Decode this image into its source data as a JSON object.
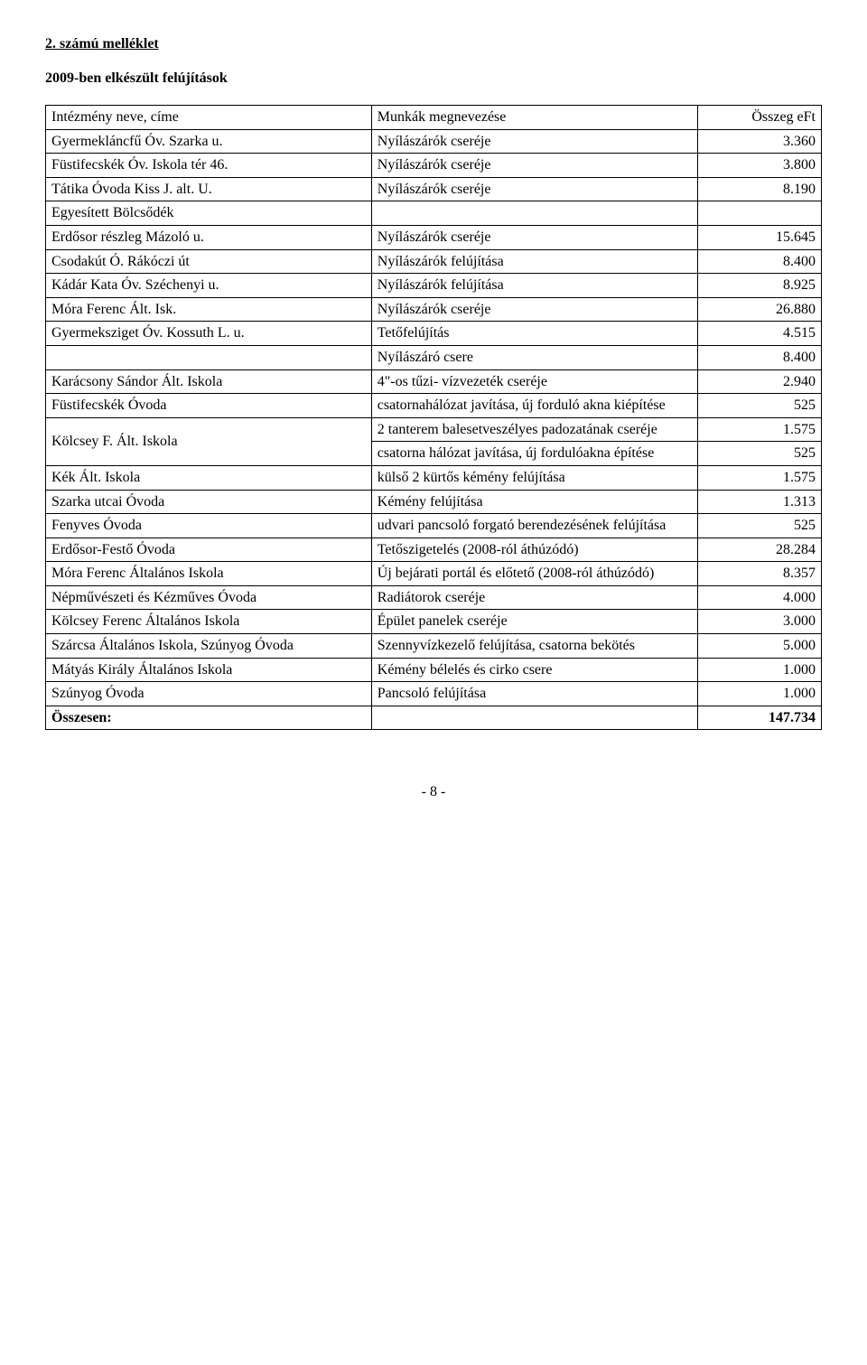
{
  "heading1": "2. számú melléklet",
  "heading2": "2009-ben elkészült felújítások",
  "table": {
    "col_widths": [
      "42%",
      "42%",
      "16%"
    ],
    "rows": [
      {
        "c1": "Intézmény neve, címe",
        "c2": "Munkák megnevezése",
        "c3": "Összeg eFt"
      },
      {
        "c1": "Gyermekláncfű Óv. Szarka u.",
        "c2": "Nyílászárók cseréje",
        "c3": "3.360"
      },
      {
        "c1": "Füstifecskék Óv. Iskola tér 46.",
        "c2": "Nyílászárók cseréje",
        "c3": "3.800"
      },
      {
        "c1": "Tátika Óvoda Kiss J. alt. U.",
        "c2": "Nyílászárók cseréje",
        "c3": "8.190"
      },
      {
        "c1": "Egyesített Bölcsődék",
        "c2": "",
        "c3": ""
      },
      {
        "c1": "Erdősor részleg Mázoló u.",
        "c2": "Nyílászárók cseréje",
        "c3": "15.645"
      },
      {
        "c1": "Csodakút Ó. Rákóczi út",
        "c2": "Nyílászárók felújítása",
        "c3": "8.400"
      },
      {
        "c1": "Kádár Kata Óv. Széchenyi u.",
        "c2": "Nyílászárók felújítása",
        "c3": "8.925"
      },
      {
        "c1": "Móra Ferenc Ált. Isk.",
        "c2": "Nyílászárók cseréje",
        "c3": "26.880"
      },
      {
        "c1": "Gyermeksziget Óv. Kossuth L. u.",
        "c2": "Tetőfelújítás",
        "c3": "4.515"
      },
      {
        "c1": "",
        "c2": "Nyílászáró csere",
        "c3": "8.400"
      },
      {
        "c1": "Karácsony Sándor Ált. Iskola",
        "c2": "4\"-os tűzi- vízvezeték cseréje",
        "c3": "2.940"
      },
      {
        "c1": "Füstifecskék Óvoda",
        "c2": "csatornahálózat javítása, új forduló akna kiépítése",
        "c3": "525"
      },
      {
        "c1": "Kölcsey F. Ált. Iskola",
        "c2": "2 tanterem balesetveszélyes padozatának cseréje",
        "c3": "1.575",
        "multi": [
          {
            "c2": "csatorna hálózat javítása, új fordulóakna építése",
            "c3": "525"
          }
        ]
      },
      {
        "c1": "Kék Ált. Iskola",
        "c2": "külső 2 kürtős kémény felújítása",
        "c3": "1.575"
      },
      {
        "c1": "Szarka utcai Óvoda",
        "c2": "Kémény felújítása",
        "c3": "1.313"
      },
      {
        "c1": "Fenyves Óvoda",
        "c2": "udvari pancsoló forgató berendezésének felújítása",
        "c3": "525"
      },
      {
        "c1": "Erdősor-Festő Óvoda",
        "c2": "Tetőszigetelés (2008-ról áthúzódó)",
        "c3": "28.284"
      },
      {
        "c1": "Móra Ferenc Általános Iskola",
        "c2": "Új bejárati portál és előtető (2008-ról áthúzódó)",
        "c3": "8.357"
      },
      {
        "c1": "Népművészeti és Kézműves Óvoda",
        "c2": "Radiátorok cseréje",
        "c3": "4.000"
      },
      {
        "c1": "Kölcsey Ferenc Általános Iskola",
        "c2": "Épület panelek cseréje",
        "c3": "3.000"
      },
      {
        "c1": "Szárcsa Általános Iskola, Szúnyog Óvoda",
        "c2": "Szennyvízkezelő felújítása, csatorna bekötés",
        "c3": "5.000"
      },
      {
        "c1": "Mátyás Király Általános Iskola",
        "c2": "Kémény bélelés és cirko csere",
        "c3": "1.000"
      },
      {
        "c1": "Szúnyog Óvoda",
        "c2": "Pancsoló felújítása",
        "c3": "1.000"
      },
      {
        "c1": "Összesen:",
        "c2": "",
        "c3": "147.734",
        "bold": true
      }
    ]
  },
  "footer": "- 8 -"
}
